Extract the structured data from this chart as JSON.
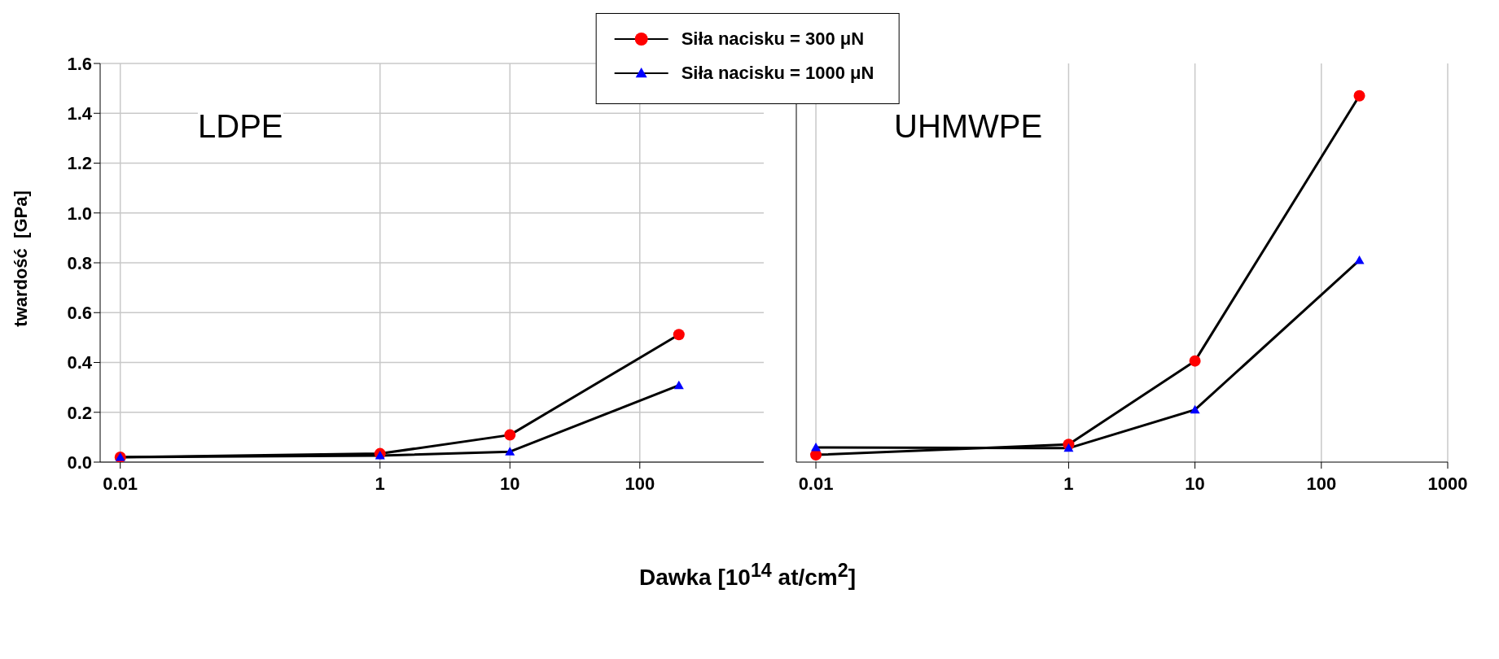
{
  "chart_data": [
    {
      "type": "line",
      "xlabel": "Dawka [10$^{14}$ at/cm$^{2}$]",
      "ylabel": "twardość  [GPa]",
      "annotations": [
        "LDPE"
      ],
      "log": "x",
      "xlim": [
        0.007,
        900
      ],
      "xticks": [
        0.01,
        1,
        10,
        100
      ],
      "ylim": [
        0,
        1.6
      ],
      "yticks": [
        {
          "value": 0,
          "label": "0.0"
        },
        0.2,
        0.4,
        0.6,
        0.8,
        {
          "value": 1,
          "label": "1.0"
        },
        1.2,
        1.4,
        1.6
      ],
      "grid": true,
      "legend": "top",
      "x": [
        0.01,
        1,
        10,
        200
      ],
      "series": [
        {
          "name": "Siła nacisku = 300 μN",
          "color": "#ff0000",
          "marker": "circle",
          "values": [
            0.02,
            0.034,
            0.109,
            0.512
          ]
        },
        {
          "name": "Siła nacisku = 1000 μN",
          "color": "#0000ff",
          "marker": "triangle",
          "values": [
            0.02,
            0.026,
            0.042,
            0.308
          ]
        }
      ]
    },
    {
      "type": "line",
      "annotations": [
        "UHMWPE"
      ],
      "log": "x",
      "xlim": [
        0.007,
        1000
      ],
      "xticks": [
        0.01,
        1,
        10,
        100,
        1000
      ],
      "ylim": [
        0,
        1.6
      ],
      "yticks": [
        0,
        0.2,
        0.4,
        0.6,
        0.8,
        1,
        1.2,
        1.4,
        1.6
      ],
      "grid": true,
      "tick_labels": "x",
      "x": [
        0.01,
        1,
        10,
        200
      ],
      "series": [
        {
          "color": "#ff0000",
          "marker": "circle",
          "values": [
            0.029,
            0.071,
            0.406,
            1.47
          ]
        },
        {
          "color": "#0000ff",
          "marker": "triangle",
          "values": [
            0.059,
            0.056,
            0.21,
            0.81
          ]
        }
      ]
    }
  ]
}
